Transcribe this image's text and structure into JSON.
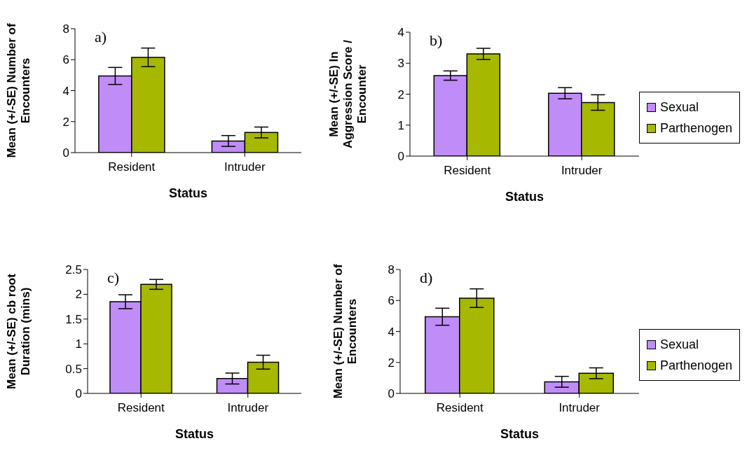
{
  "chart_data": [
    {
      "type": "bar",
      "categories": [
        "Resident",
        "Intruder"
      ],
      "xlabel": "Status",
      "ylabel": "Mean (+/-SE) Number of Encounters",
      "annotations": [
        "a)"
      ],
      "ylim": [
        0,
        8
      ],
      "yticks": [
        0,
        2,
        4,
        6,
        8
      ],
      "grid": false,
      "legend": false,
      "series": [
        {
          "color": "#c08cf8",
          "values": [
            4.95,
            0.75
          ],
          "errors": [
            0.55,
            0.35
          ]
        },
        {
          "color": "#a6b800",
          "values": [
            6.15,
            1.3
          ],
          "errors": [
            0.6,
            0.35
          ]
        }
      ]
    },
    {
      "type": "bar",
      "categories": [
        "Resident",
        "Intruder"
      ],
      "xlabel": "Status",
      "ylabel": "Mean (+/-SE) ln Aggression Score / Encounter",
      "annotations": [
        "b)"
      ],
      "ylim": [
        0,
        4
      ],
      "yticks": [
        0,
        1,
        2,
        3,
        4
      ],
      "grid": false,
      "legend": "right",
      "series": [
        {
          "name": "Sexual",
          "color": "#c08cf8",
          "values": [
            2.6,
            2.03
          ],
          "errors": [
            0.15,
            0.18
          ]
        },
        {
          "name": "Parthenogen",
          "color": "#a6b800",
          "values": [
            3.3,
            1.73
          ],
          "errors": [
            0.18,
            0.25
          ]
        }
      ]
    },
    {
      "type": "bar",
      "categories": [
        "Resident",
        "Intruder"
      ],
      "xlabel": "Status",
      "ylabel": "Mean (+/-SE) cb root Duration (mins)",
      "annotations": [
        "c)"
      ],
      "ylim": [
        0,
        2.5
      ],
      "yticks": [
        0,
        0.5,
        1,
        1.5,
        2,
        2.5
      ],
      "grid": false,
      "legend": false,
      "series": [
        {
          "color": "#c08cf8",
          "values": [
            1.85,
            0.3
          ],
          "errors": [
            0.14,
            0.11
          ]
        },
        {
          "color": "#a6b800",
          "values": [
            2.2,
            0.63
          ],
          "errors": [
            0.1,
            0.14
          ]
        }
      ]
    },
    {
      "type": "bar",
      "categories": [
        "Resident",
        "Intruder"
      ],
      "xlabel": "Status",
      "ylabel": "Mean (+/-SE) Number of Encounters",
      "annotations": [
        "d)"
      ],
      "ylim": [
        0,
        8
      ],
      "yticks": [
        0,
        2,
        4,
        6,
        8
      ],
      "grid": false,
      "legend": "right",
      "series": [
        {
          "name": "Sexual",
          "color": "#c08cf8",
          "values": [
            4.95,
            0.75
          ],
          "errors": [
            0.55,
            0.35
          ]
        },
        {
          "name": "Parthenogen",
          "color": "#a6b800",
          "values": [
            6.15,
            1.3
          ],
          "errors": [
            0.6,
            0.35
          ]
        }
      ]
    }
  ]
}
